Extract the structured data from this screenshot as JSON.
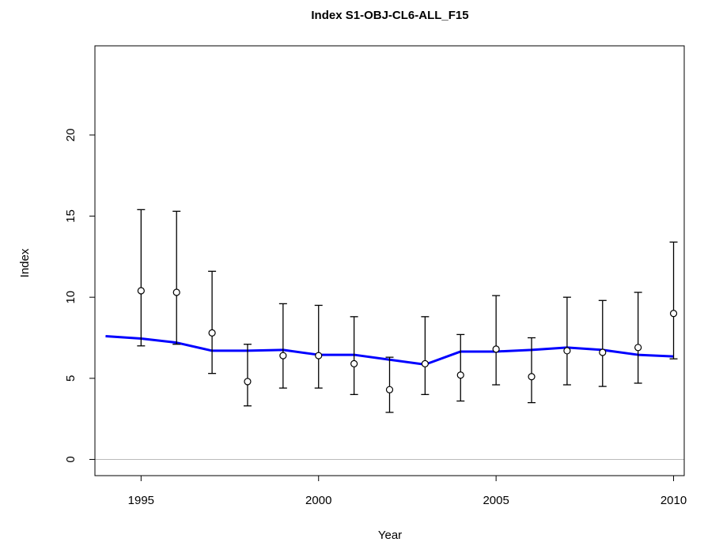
{
  "chart_data": {
    "type": "line",
    "title": "Index S1-OBJ-CL6-ALL_F15",
    "xlabel": "Year",
    "ylabel": "Index",
    "xlim": [
      1993.7,
      2010.3
    ],
    "ylim": [
      -1.0,
      25.5
    ],
    "x_ticks": [
      1995,
      2000,
      2005,
      2010
    ],
    "x_tick_labels": [
      "1995",
      "2000",
      "2005",
      "2010"
    ],
    "y_ticks": [
      0,
      5,
      10,
      15,
      20
    ],
    "y_tick_labels": [
      "0",
      "5",
      "10",
      "15",
      "20"
    ],
    "grid": false,
    "reference_line": {
      "y": 0,
      "color": "#bbbbbb"
    },
    "observed": {
      "x": [
        1995,
        1996,
        1997,
        1998,
        1999,
        2000,
        2001,
        2002,
        2003,
        2004,
        2005,
        2006,
        2007,
        2008,
        2009,
        2010
      ],
      "y": [
        10.4,
        10.3,
        7.8,
        4.8,
        6.4,
        6.4,
        5.9,
        4.3,
        5.9,
        5.2,
        6.8,
        5.1,
        6.7,
        6.6,
        6.9,
        9.0
      ],
      "lower": [
        7.0,
        7.1,
        5.3,
        3.3,
        4.4,
        4.4,
        4.0,
        2.9,
        4.0,
        3.6,
        4.6,
        3.5,
        4.6,
        4.5,
        4.7,
        6.2
      ],
      "upper": [
        15.4,
        15.3,
        11.6,
        7.1,
        9.6,
        9.5,
        8.8,
        6.3,
        8.8,
        7.7,
        10.1,
        7.5,
        10.0,
        9.8,
        10.3,
        13.4
      ],
      "color": "#000000"
    },
    "fitted": {
      "x": [
        1994,
        1995,
        1996,
        1997,
        1998,
        1999,
        2000,
        2001,
        2002,
        2003,
        2004,
        2005,
        2006,
        2007,
        2008,
        2009,
        2010
      ],
      "y": [
        7.6,
        7.45,
        7.2,
        6.7,
        6.7,
        6.75,
        6.45,
        6.45,
        6.15,
        5.85,
        6.65,
        6.65,
        6.75,
        6.9,
        6.75,
        6.45,
        6.35
      ],
      "color": "#0000ff"
    }
  }
}
